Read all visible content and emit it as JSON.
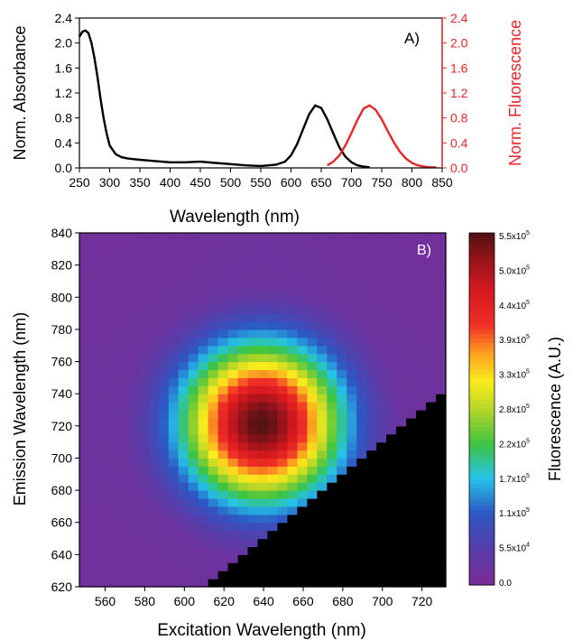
{
  "panel_a": {
    "type": "line",
    "label": "A)",
    "xlabel": "Wavelength (nm)",
    "ylabel_left": "Norm. Absorbance",
    "ylabel_right": "Norm. Fluorescence",
    "xlim": [
      250,
      850
    ],
    "ylim": [
      0,
      2.4
    ],
    "xticks": [
      "250",
      "300",
      "350",
      "400",
      "450",
      "500",
      "550",
      "600",
      "650",
      "700",
      "750",
      "800",
      "850"
    ],
    "yticks": [
      "0.0",
      "0.4",
      "0.8",
      "1.2",
      "1.6",
      "2.0",
      "2.4"
    ],
    "colors": {
      "absorbance": "#000000",
      "fluorescence": "#e8262a"
    }
  },
  "panel_b": {
    "type": "heatmap",
    "label": "B)",
    "xlabel": "Excitation Wavelength (nm)",
    "ylabel": "Emission Wavelength (nm)",
    "xlim": [
      547,
      732
    ],
    "ylim": [
      620,
      840
    ],
    "xticks": [
      "560",
      "580",
      "600",
      "620",
      "640",
      "660",
      "680",
      "700",
      "720"
    ],
    "yticks": [
      "620",
      "640",
      "660",
      "680",
      "700",
      "720",
      "740",
      "760",
      "780",
      "800",
      "820",
      "840"
    ],
    "colorbar_label": "Fluorescence (A.U.)",
    "colorbar_ticks": [
      "0.0",
      "5.5x10",
      "1.1x10",
      "1.7x10",
      "2.2x10",
      "2.8x10",
      "3.3x10",
      "3.9x10",
      "4.4x10",
      "5.0x10",
      "5.5x10"
    ],
    "colorbar_tick_exponents": [
      "",
      "4",
      "5",
      "5",
      "5",
      "5",
      "5",
      "5",
      "5",
      "5",
      "5"
    ],
    "colorbar_range": [
      0,
      550000
    ]
  },
  "chart_data": [
    {
      "type": "line",
      "xlabel": "Wavelength (nm)",
      "ylabel": "Norm. Absorbance",
      "xlim": [
        250,
        850
      ],
      "ylim": [
        0,
        2.4
      ],
      "series": [
        {
          "x": [
            250,
            255,
            260,
            265,
            270,
            275,
            280,
            285,
            290,
            295,
            300,
            310,
            320,
            330,
            340,
            350,
            375,
            400,
            425,
            450,
            475,
            500,
            525,
            550,
            575,
            590,
            600,
            610,
            620,
            630,
            640,
            650,
            660,
            670,
            680,
            690,
            700,
            710,
            720,
            730
          ],
          "y": [
            2.1,
            2.18,
            2.2,
            2.16,
            2.0,
            1.75,
            1.45,
            1.1,
            0.8,
            0.55,
            0.36,
            0.22,
            0.17,
            0.15,
            0.14,
            0.13,
            0.11,
            0.09,
            0.09,
            0.1,
            0.08,
            0.06,
            0.04,
            0.03,
            0.05,
            0.1,
            0.2,
            0.38,
            0.62,
            0.86,
            1.0,
            0.96,
            0.78,
            0.55,
            0.33,
            0.18,
            0.09,
            0.04,
            0.02,
            0.01
          ]
        },
        {
          "x": [
            660,
            670,
            680,
            690,
            700,
            710,
            720,
            730,
            740,
            750,
            760,
            770,
            780,
            790,
            800,
            810,
            820,
            830,
            840
          ],
          "y": [
            0.04,
            0.1,
            0.2,
            0.36,
            0.56,
            0.77,
            0.95,
            1.0,
            0.93,
            0.78,
            0.59,
            0.41,
            0.26,
            0.15,
            0.08,
            0.04,
            0.02,
            0.01,
            0.01
          ]
        }
      ]
    },
    {
      "type": "heatmap",
      "xlabel": "Excitation Wavelength (nm)",
      "ylabel": "Emission Wavelength (nm)",
      "xlim": [
        547,
        732
      ],
      "ylim": [
        620,
        840
      ],
      "peak": {
        "x": 639,
        "y": 722,
        "value": 550000
      },
      "sigma_x": 28,
      "sigma_y": 34,
      "masked_region": "emission < excitation + 10 (black)",
      "colorbar": {
        "min": 0,
        "max": 550000
      }
    }
  ]
}
